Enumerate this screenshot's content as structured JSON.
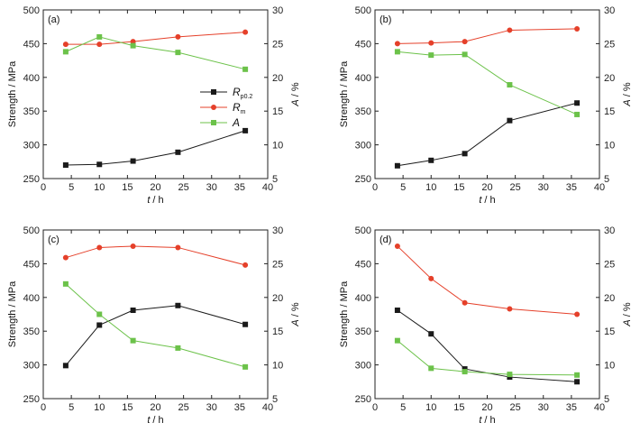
{
  "legend": [
    {
      "series": "Rp0.2",
      "main": "R",
      "sub": "p0.2",
      "color": "#1a1a1a",
      "marker": "square"
    },
    {
      "series": "Rm",
      "main": "R",
      "sub": "m",
      "color": "#e5402a",
      "marker": "circle"
    },
    {
      "series": "A",
      "main": "A",
      "sub": "",
      "color": "#6cc24a",
      "marker": "square"
    }
  ],
  "axis_text": {
    "ylabel_left": "Strength / MPa",
    "ylabel_right_var": "A",
    "ylabel_right_unit": " / %",
    "xlabel_var": "t",
    "xlabel_unit": " / h"
  },
  "colors": {
    "Rp0.2": "#1a1a1a",
    "Rm": "#e5402a",
    "A": "#6cc24a"
  },
  "chart_data": [
    {
      "panel": "(a)",
      "type": "line",
      "x": [
        4,
        10,
        16,
        24,
        36
      ],
      "xlim": [
        0,
        40
      ],
      "xticks": [
        0,
        5,
        10,
        15,
        20,
        25,
        30,
        35,
        40
      ],
      "ylim_left": [
        250,
        500
      ],
      "yticks_left": [
        250,
        300,
        350,
        400,
        450,
        500
      ],
      "ylim_right": [
        5,
        30
      ],
      "yticks_right": [
        5,
        10,
        15,
        20,
        25,
        30
      ],
      "series": [
        {
          "name": "Rp0.2",
          "axis": "left",
          "values": [
            270,
            271,
            276,
            289,
            321
          ]
        },
        {
          "name": "Rm",
          "axis": "left",
          "values": [
            449,
            449,
            453,
            460,
            467
          ]
        },
        {
          "name": "A",
          "axis": "right",
          "values": [
            23.8,
            26.0,
            24.7,
            23.7,
            21.2
          ]
        }
      ],
      "legend": true
    },
    {
      "panel": "(b)",
      "type": "line",
      "x": [
        4,
        10,
        16,
        24,
        36
      ],
      "xlim": [
        0,
        40
      ],
      "xticks": [
        0,
        5,
        10,
        15,
        20,
        25,
        30,
        35,
        40
      ],
      "ylim_left": [
        250,
        500
      ],
      "yticks_left": [
        250,
        300,
        350,
        400,
        450,
        500
      ],
      "ylim_right": [
        5,
        30
      ],
      "yticks_right": [
        5,
        10,
        15,
        20,
        25,
        30
      ],
      "series": [
        {
          "name": "Rp0.2",
          "axis": "left",
          "values": [
            269,
            277,
            287,
            336,
            362
          ]
        },
        {
          "name": "Rm",
          "axis": "left",
          "values": [
            450,
            451,
            453,
            470,
            472
          ]
        },
        {
          "name": "A",
          "axis": "right",
          "values": [
            23.8,
            23.3,
            23.4,
            18.9,
            14.5
          ]
        }
      ],
      "legend": false
    },
    {
      "panel": "(c)",
      "type": "line",
      "x": [
        4,
        10,
        16,
        24,
        36
      ],
      "xlim": [
        0,
        40
      ],
      "xticks": [
        0,
        5,
        10,
        15,
        20,
        25,
        30,
        35,
        40
      ],
      "ylim_left": [
        250,
        500
      ],
      "yticks_left": [
        250,
        300,
        350,
        400,
        450,
        500
      ],
      "ylim_right": [
        5,
        30
      ],
      "yticks_right": [
        5,
        10,
        15,
        20,
        25,
        30
      ],
      "series": [
        {
          "name": "Rp0.2",
          "axis": "left",
          "values": [
            299,
            359,
            381,
            388,
            360
          ]
        },
        {
          "name": "Rm",
          "axis": "left",
          "values": [
            459,
            474,
            476,
            474,
            448
          ]
        },
        {
          "name": "A",
          "axis": "right",
          "values": [
            22.0,
            17.5,
            13.6,
            12.5,
            9.7
          ]
        }
      ],
      "legend": false
    },
    {
      "panel": "(d)",
      "type": "line",
      "x": [
        4,
        10,
        16,
        24,
        36
      ],
      "xlim": [
        0,
        40
      ],
      "xticks": [
        0,
        5,
        10,
        15,
        20,
        25,
        30,
        35,
        40
      ],
      "ylim_left": [
        250,
        500
      ],
      "yticks_left": [
        250,
        300,
        350,
        400,
        450,
        500
      ],
      "ylim_right": [
        5,
        30
      ],
      "yticks_right": [
        5,
        10,
        15,
        20,
        25,
        30
      ],
      "series": [
        {
          "name": "Rp0.2",
          "axis": "left",
          "values": [
            381,
            346,
            294,
            282,
            275
          ]
        },
        {
          "name": "Rm",
          "axis": "left",
          "values": [
            476,
            428,
            392,
            383,
            375
          ]
        },
        {
          "name": "A",
          "axis": "right",
          "values": [
            13.6,
            9.5,
            9.0,
            8.6,
            8.5
          ]
        }
      ],
      "legend": false
    }
  ]
}
